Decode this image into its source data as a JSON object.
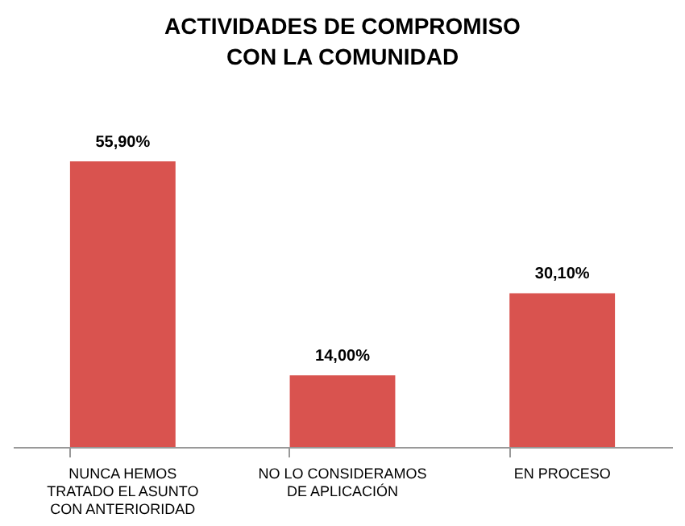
{
  "chart_data": {
    "type": "bar",
    "title": "ACTIVIDADES DE COMPROMISO CON LA COMUNIDAD",
    "categories": [
      "NUNCA HEMOS TRATADO EL ASUNTO CON ANTERIORIDAD",
      "NO LO CONSIDERAMOS DE APLICACIÓN",
      "EN PROCESO"
    ],
    "values": [
      55.9,
      14.0,
      30.1
    ],
    "value_labels": [
      "55,90%",
      "14,00%",
      "30,10%"
    ],
    "color": "#d9534f"
  }
}
